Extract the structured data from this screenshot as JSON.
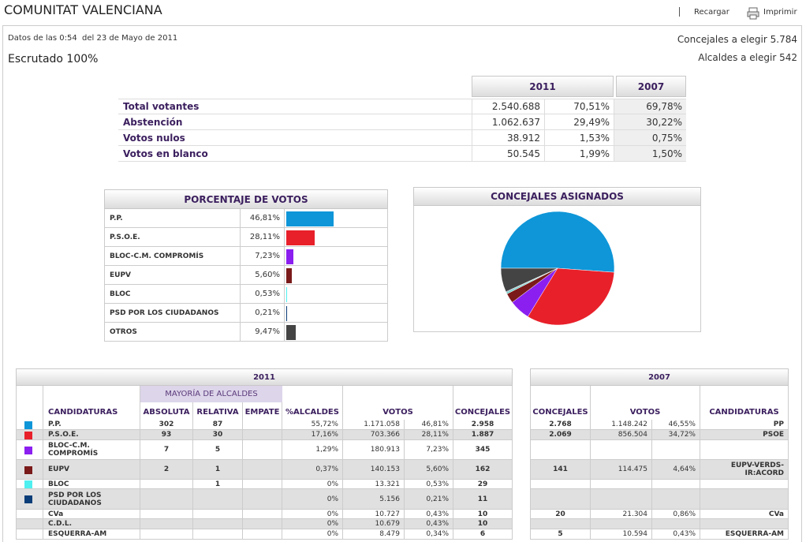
{
  "header": {
    "title": "COMUNITAT VALENCIANA",
    "links": [
      "Recargar",
      "Imprimir"
    ]
  },
  "info": {
    "date": "Datos de las 0:54  del 23 de Mayo de 2011",
    "scrutiny": "Escrutado 100%",
    "councillors": "Concejales a elegir 5.784",
    "mayors": "Alcaldes a elegir 542"
  },
  "summary": {
    "columns": [
      "2011",
      "2007"
    ],
    "rows": [
      [
        "Total votantes",
        "2.540.688",
        "70,51%",
        "69,78%"
      ],
      [
        "Abstención",
        "1.062.637",
        "29,49%",
        "30,22%"
      ],
      [
        "Votos nulos",
        "38.912",
        "1,53%",
        "0,75%"
      ],
      [
        "Votos en blanco",
        "50.545",
        "1,99%",
        "1,50%"
      ]
    ]
  },
  "vote_panel": {
    "title": "PORCENTAJE DE VOTOS",
    "rows": [
      {
        "name": "P.P.",
        "value": 46.81,
        "value_label": "46,81%",
        "color": "#0e96d8"
      },
      {
        "name": "P.S.O.E.",
        "value": 28.11,
        "value_label": "28,11%",
        "color": "#e8202a"
      },
      {
        "name": "BLOC-C.M. COMPROMÍS",
        "value": 7.23,
        "value_label": "7,23%",
        "color": "#8b1ff0"
      },
      {
        "name": "EUPV",
        "value": 5.6,
        "value_label": "5,60%",
        "color": "#7a1a1a"
      },
      {
        "name": "BLOC",
        "value": 0.53,
        "value_label": "0,53%",
        "color": "#4ff0f0"
      },
      {
        "name": "PSD POR LOS CIUDADANOS",
        "value": 0.21,
        "value_label": "0,21%",
        "color": "#0b3d78"
      },
      {
        "name": "OTROS",
        "value": 9.47,
        "value_label": "9,47%",
        "color": "#444444"
      }
    ]
  },
  "pie_chart": {
    "type": "pie",
    "title": "CONCEJALES ASIGNADOS",
    "values": [
      2958,
      1887,
      345,
      162,
      29,
      11,
      392
    ],
    "colors": [
      "#0e96d8",
      "#e8202a",
      "#8b1ff0",
      "#7a1a1a",
      "#6fd0c8",
      "#0b3d78",
      "#444444"
    ]
  },
  "results": {
    "year_2011": "2011",
    "year_2007": "2007",
    "group": "MAYORÍA DE ALCALDES",
    "columns_2011": [
      "CANDIDATURAS",
      "ABSOLUTA",
      "RELATIVA",
      "EMPATE",
      "%ALCALDES",
      "VOTOS",
      "CONCEJALES"
    ],
    "columns_2007": [
      "CONCEJALES",
      "VOTOS",
      "CANDIDATURAS"
    ],
    "rows": [
      {
        "color": "#0e96d8",
        "cells_2011": [
          "P.P.",
          "302",
          "87",
          null,
          "55,72%",
          "1.171.058",
          "46,81%",
          "2.958"
        ],
        "cells_2007": [
          "2.768",
          "1.148.242",
          "46,55%",
          "PP"
        ]
      },
      {
        "color": "#e8202a",
        "cells_2011": [
          "P.S.O.E.",
          "93",
          "30",
          null,
          "17,16%",
          "703.366",
          "28,11%",
          "1.887"
        ],
        "cells_2007": [
          "2.069",
          "856.504",
          "34,72%",
          "PSOE"
        ]
      },
      {
        "color": "#8b1ff0",
        "cells_2011": [
          "BLOC-C.M. COMPROMÍS",
          "7",
          "5",
          null,
          "1,29%",
          "180.913",
          "7,23%",
          "345"
        ],
        "cells_2007": [
          null,
          null,
          null,
          null
        ]
      },
      {
        "color": "#7a1a1a",
        "cells_2011": [
          "EUPV",
          "2",
          "1",
          null,
          "0,37%",
          "140.153",
          "5,60%",
          "162"
        ],
        "cells_2007": [
          "141",
          "114.475",
          "4,64%",
          "EUPV-VERDS-IR:ACORD"
        ]
      },
      {
        "color": "#4ff0f0",
        "cells_2011": [
          "BLOC",
          null,
          "1",
          null,
          "0%",
          "13.321",
          "0,53%",
          "29"
        ],
        "cells_2007": [
          null,
          null,
          null,
          null
        ]
      },
      {
        "color": "#0b3d78",
        "cells_2011": [
          "PSD POR LOS CIUDADANOS",
          null,
          null,
          null,
          "0%",
          "5.156",
          "0,21%",
          "11"
        ],
        "cells_2007": [
          null,
          null,
          null,
          null
        ]
      },
      {
        "color": null,
        "cells_2011": [
          "CVa",
          null,
          null,
          null,
          "0%",
          "10.727",
          "0,43%",
          "10"
        ],
        "cells_2007": [
          "20",
          "21.304",
          "0,86%",
          "CVa"
        ]
      },
      {
        "color": null,
        "cells_2011": [
          "C.D.L.",
          null,
          null,
          null,
          "0%",
          "10.679",
          "0,43%",
          "10"
        ],
        "cells_2007": [
          null,
          null,
          null,
          null
        ]
      },
      {
        "color": null,
        "cells_2011": [
          "ESQUERRA-AM",
          null,
          null,
          null,
          "0%",
          "8.479",
          "0,34%",
          "6"
        ],
        "cells_2007": [
          "5",
          "10.594",
          "0,43%",
          "ESQUERRA-AM"
        ]
      }
    ]
  }
}
